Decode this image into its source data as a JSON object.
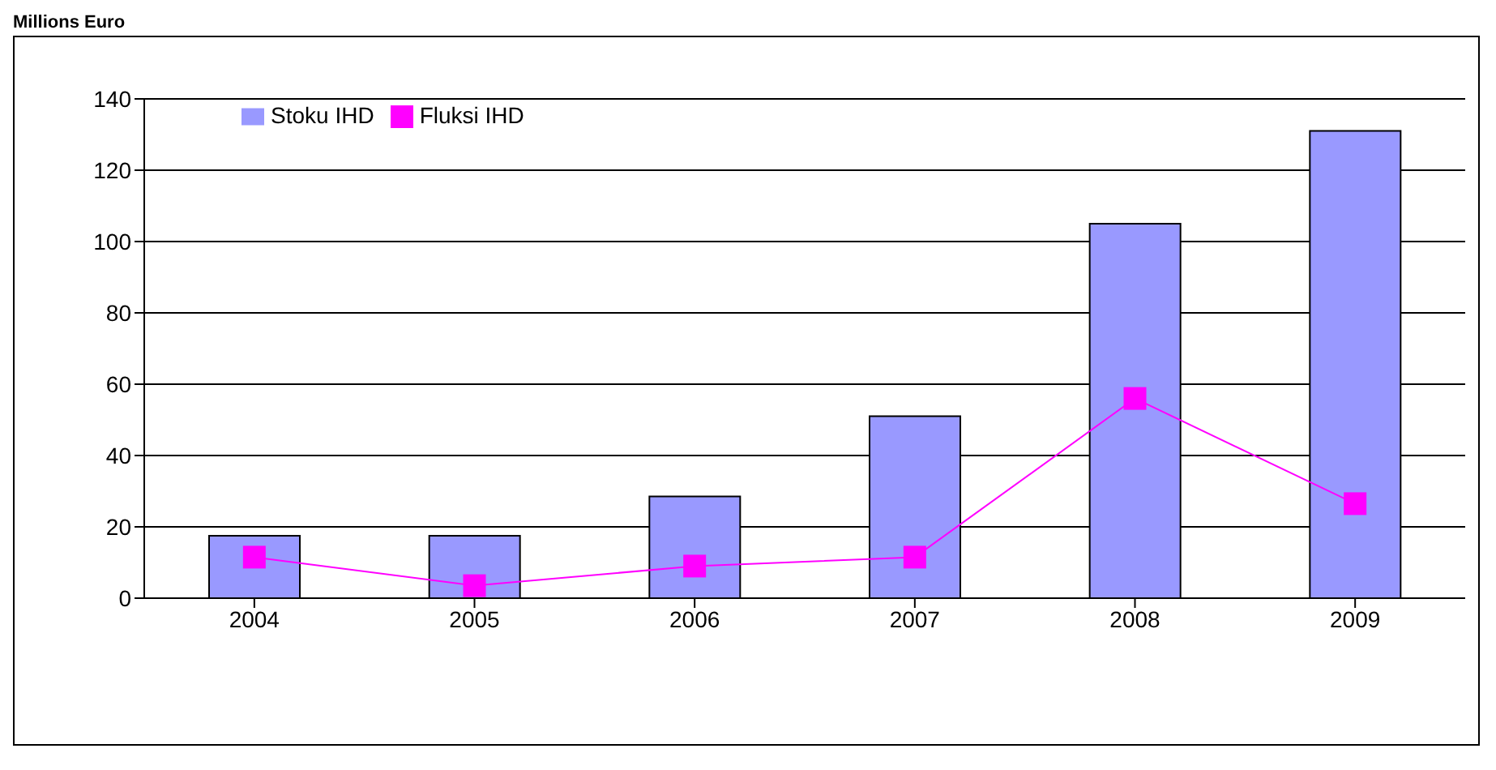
{
  "chart_data": {
    "type": "bar",
    "ylabel": "Millions Euro",
    "categories": [
      "2004",
      "2005",
      "2006",
      "2007",
      "2008",
      "2009"
    ],
    "series": [
      {
        "name": "Stoku IHD",
        "color": "#9999ff",
        "values": [
          17.5,
          17.5,
          28.5,
          51,
          105,
          131
        ]
      },
      {
        "name": "Fluksi IHD",
        "type": "line",
        "color": "#ff00ff",
        "values": [
          11.5,
          3.5,
          9,
          11.5,
          56,
          26.5
        ]
      }
    ],
    "ylim": [
      0,
      140
    ],
    "yticks": [
      0,
      20,
      40,
      60,
      80,
      100,
      120,
      140
    ],
    "grid": "y",
    "legend": "top left",
    "marker": "square"
  }
}
